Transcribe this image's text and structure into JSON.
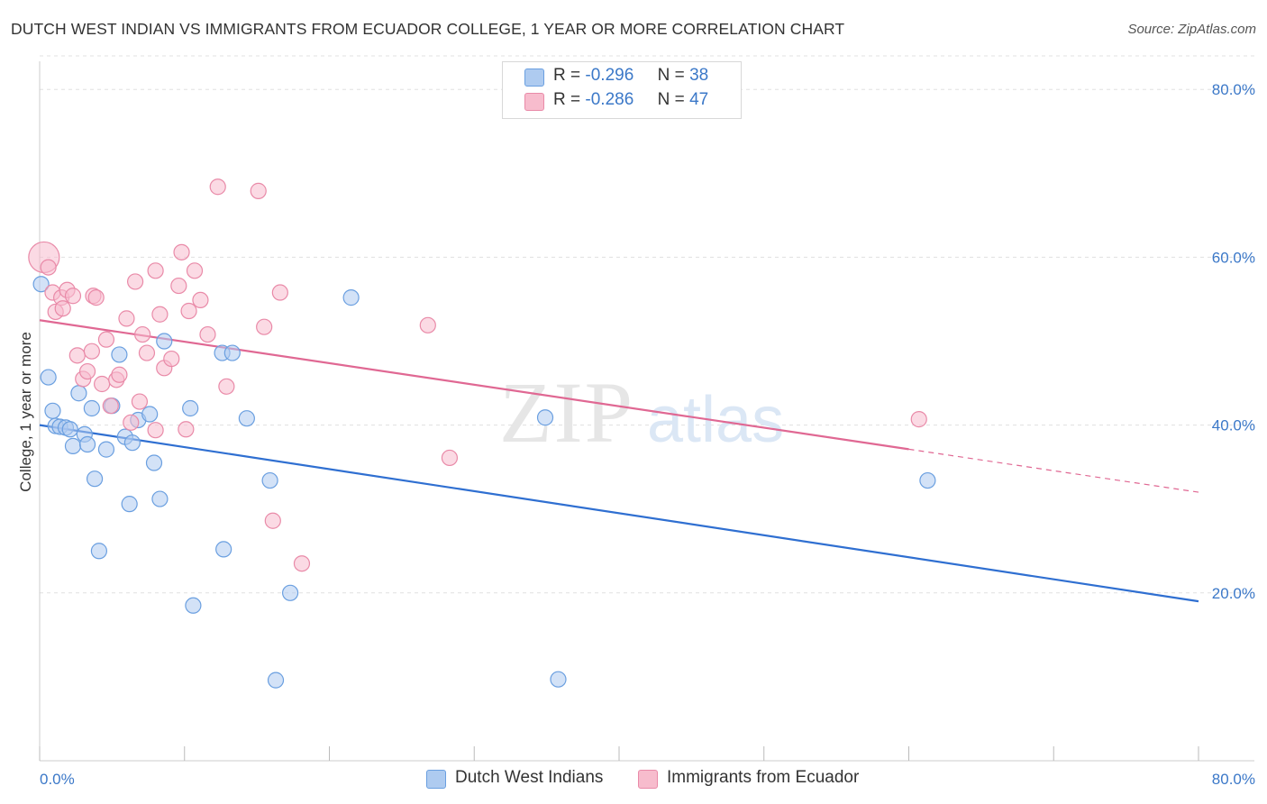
{
  "title": "DUTCH WEST INDIAN VS IMMIGRANTS FROM ECUADOR COLLEGE, 1 YEAR OR MORE CORRELATION CHART",
  "source": "Source: ZipAtlas.com",
  "watermark": {
    "zip": "ZIP",
    "atlas": "atlas"
  },
  "legend": {
    "rows": [
      {
        "r_label": "R =",
        "r_value": "-0.296",
        "n_label": "N =",
        "n_value": "38"
      },
      {
        "r_label": "R =",
        "r_value": "-0.286",
        "n_label": "N =",
        "n_value": "47"
      }
    ]
  },
  "colors": {
    "blue_fill": "#aecbf0",
    "blue_stroke": "#6a9fe0",
    "blue_line": "#2f6fd1",
    "pink_fill": "#f7bccd",
    "pink_stroke": "#e98aa8",
    "pink_line": "#e06893",
    "grid": "#e0e0e0",
    "axis_text": "#3b78c8"
  },
  "chart_data": {
    "type": "scatter",
    "title": "DUTCH WEST INDIAN VS IMMIGRANTS FROM ECUADOR COLLEGE, 1 YEAR OR MORE CORRELATION CHART",
    "xlabel": "",
    "ylabel": "College, 1 year or more",
    "xlim": [
      0,
      80
    ],
    "ylim": [
      0,
      84
    ],
    "x_tick_labels": [
      "0.0%",
      "80.0%"
    ],
    "y_ticks": [
      20,
      40,
      60,
      80
    ],
    "y_tick_labels": [
      "20.0%",
      "40.0%",
      "60.0%",
      "80.0%"
    ],
    "grid": true,
    "legend_position": "top-center",
    "series": [
      {
        "name": "Dutch West Indians",
        "color": "#6a9fe0",
        "r": -0.296,
        "n": 38,
        "trend": {
          "x0": 0,
          "y0": 40.0,
          "x1": 80,
          "y1": 19.0,
          "dash_from": null
        },
        "points": [
          [
            0.1,
            56.8
          ],
          [
            0.6,
            45.7
          ],
          [
            0.9,
            41.7
          ],
          [
            1.1,
            39.9
          ],
          [
            1.4,
            39.8
          ],
          [
            1.8,
            39.7
          ],
          [
            2.1,
            39.5
          ],
          [
            2.3,
            37.5
          ],
          [
            2.7,
            43.8
          ],
          [
            3.1,
            38.9
          ],
          [
            3.3,
            37.7
          ],
          [
            3.6,
            42.0
          ],
          [
            3.8,
            33.6
          ],
          [
            4.1,
            25.0
          ],
          [
            4.6,
            37.1
          ],
          [
            5.0,
            42.3
          ],
          [
            5.5,
            48.4
          ],
          [
            5.9,
            38.6
          ],
          [
            6.2,
            30.6
          ],
          [
            6.4,
            37.9
          ],
          [
            6.8,
            40.6
          ],
          [
            7.6,
            41.3
          ],
          [
            7.9,
            35.5
          ],
          [
            8.3,
            31.2
          ],
          [
            8.6,
            50.0
          ],
          [
            10.4,
            42.0
          ],
          [
            10.6,
            18.5
          ],
          [
            12.6,
            48.6
          ],
          [
            12.7,
            25.2
          ],
          [
            13.3,
            48.6
          ],
          [
            14.3,
            40.8
          ],
          [
            15.9,
            33.4
          ],
          [
            16.3,
            9.6
          ],
          [
            17.3,
            20.0
          ],
          [
            21.5,
            55.2
          ],
          [
            34.9,
            40.9
          ],
          [
            35.8,
            9.7
          ],
          [
            61.3,
            33.4
          ]
        ]
      },
      {
        "name": "Immigrants from Ecuador",
        "color": "#e98aa8",
        "r": -0.286,
        "n": 47,
        "trend": {
          "x0": 0,
          "y0": 52.5,
          "x1": 80,
          "y1": 32.0,
          "dash_from": 60
        },
        "points": [
          [
            0.3,
            60.0
          ],
          [
            0.6,
            58.8
          ],
          [
            0.9,
            55.8
          ],
          [
            1.1,
            53.5
          ],
          [
            1.5,
            55.2
          ],
          [
            1.6,
            53.9
          ],
          [
            1.9,
            56.1
          ],
          [
            2.3,
            55.4
          ],
          [
            2.6,
            48.3
          ],
          [
            3.0,
            45.5
          ],
          [
            3.3,
            46.4
          ],
          [
            3.6,
            48.8
          ],
          [
            3.7,
            55.4
          ],
          [
            3.9,
            55.2
          ],
          [
            4.3,
            44.9
          ],
          [
            4.6,
            50.2
          ],
          [
            4.9,
            42.3
          ],
          [
            5.3,
            45.4
          ],
          [
            5.5,
            46.0
          ],
          [
            6.0,
            52.7
          ],
          [
            6.3,
            40.3
          ],
          [
            6.6,
            57.1
          ],
          [
            6.9,
            42.8
          ],
          [
            7.1,
            50.8
          ],
          [
            7.4,
            48.6
          ],
          [
            8.0,
            39.4
          ],
          [
            8.0,
            58.4
          ],
          [
            8.3,
            53.2
          ],
          [
            8.6,
            46.8
          ],
          [
            9.1,
            47.9
          ],
          [
            9.6,
            56.6
          ],
          [
            9.8,
            60.6
          ],
          [
            10.1,
            39.5
          ],
          [
            10.3,
            53.6
          ],
          [
            10.7,
            58.4
          ],
          [
            11.1,
            54.9
          ],
          [
            11.6,
            50.8
          ],
          [
            12.3,
            68.4
          ],
          [
            12.9,
            44.6
          ],
          [
            15.1,
            67.9
          ],
          [
            15.5,
            51.7
          ],
          [
            16.1,
            28.6
          ],
          [
            16.6,
            55.8
          ],
          [
            18.1,
            23.5
          ],
          [
            26.8,
            51.9
          ],
          [
            28.3,
            36.1
          ],
          [
            60.7,
            40.7
          ]
        ]
      }
    ]
  },
  "bottom_legend": [
    "Dutch West Indians",
    "Immigrants from Ecuador"
  ]
}
